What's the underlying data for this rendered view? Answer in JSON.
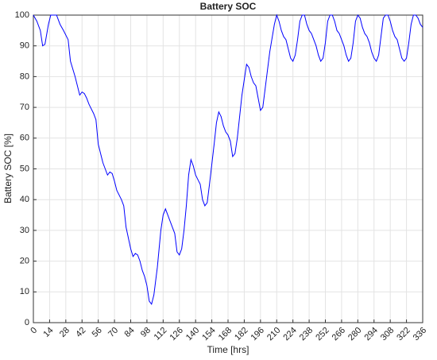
{
  "chart_data": {
    "type": "line",
    "title": "Battery SOC",
    "xlabel": "Time [hrs]",
    "ylabel": "Battery SOC [%]",
    "x": [
      0,
      3,
      6,
      8,
      10,
      13,
      15,
      20,
      23,
      26,
      30,
      32,
      36,
      40,
      42,
      44,
      46,
      48,
      52,
      54,
      56,
      60,
      62,
      64,
      66,
      68,
      70,
      72,
      76,
      78,
      80,
      84,
      86,
      88,
      90,
      92,
      94,
      96,
      98,
      100,
      102,
      104,
      107,
      110,
      112,
      114,
      116,
      118,
      120,
      122,
      124,
      126,
      128,
      130,
      132,
      134,
      136,
      138,
      140,
      142,
      144,
      146,
      148,
      150,
      152,
      156,
      158,
      160,
      162,
      164,
      166,
      168,
      170,
      172,
      174,
      176,
      180,
      184,
      186,
      188,
      190,
      192,
      194,
      196,
      198,
      200,
      204,
      208,
      210,
      212,
      214,
      216,
      218,
      220,
      222,
      224,
      226,
      228,
      230,
      232,
      234,
      236,
      238,
      240,
      242,
      244,
      246,
      248,
      250,
      252,
      254,
      256,
      258,
      260,
      262,
      264,
      266,
      268,
      270,
      272,
      274,
      276,
      278,
      280,
      282,
      284,
      286,
      288,
      290,
      292,
      294,
      296,
      298,
      300,
      302,
      304,
      306,
      308,
      310,
      312,
      314,
      316,
      318,
      320,
      322,
      324,
      326,
      328,
      330,
      332,
      334,
      336
    ],
    "values": [
      100,
      98,
      95,
      90,
      90.5,
      97,
      100,
      100,
      97,
      95,
      92,
      85,
      80,
      74,
      75,
      74.5,
      73,
      71,
      68,
      66,
      58,
      52,
      50,
      48,
      49,
      48.5,
      46,
      43,
      40,
      38,
      31,
      24,
      21.5,
      22.5,
      22,
      20,
      17,
      15,
      12,
      7,
      6,
      9,
      18,
      30,
      35,
      37,
      35,
      33,
      31,
      29,
      23,
      22,
      24,
      30,
      38,
      48,
      53,
      51,
      48,
      46.5,
      45,
      40,
      38,
      39,
      45,
      58,
      65,
      68.5,
      67,
      64,
      62,
      61,
      59,
      54,
      55,
      60,
      74,
      84,
      83,
      80,
      78,
      77,
      73,
      69,
      70,
      76,
      88,
      97,
      100,
      98,
      95,
      93,
      92,
      89,
      86,
      85,
      87,
      92,
      98,
      100,
      100,
      97,
      95,
      94,
      92,
      90,
      87,
      85,
      86,
      91,
      98,
      100,
      100,
      98,
      95,
      94,
      92,
      90,
      87,
      85,
      86,
      91,
      98,
      100,
      99,
      96,
      94,
      93,
      91,
      88,
      86,
      85,
      87,
      93,
      99,
      100,
      100,
      98,
      95,
      93,
      92,
      89,
      86,
      85,
      86,
      91,
      97,
      100,
      100,
      99,
      97,
      96
    ],
    "color": "#0000ff",
    "xlim": [
      0,
      336
    ],
    "xticks": [
      0,
      14,
      28,
      42,
      56,
      70,
      84,
      98,
      112,
      126,
      140,
      154,
      168,
      182,
      196,
      210,
      224,
      238,
      252,
      266,
      280,
      294,
      308,
      322,
      336
    ],
    "ylim": [
      0,
      100
    ],
    "yticks": [
      0,
      10,
      20,
      30,
      40,
      50,
      60,
      70,
      80,
      90,
      100
    ],
    "grid": true
  }
}
